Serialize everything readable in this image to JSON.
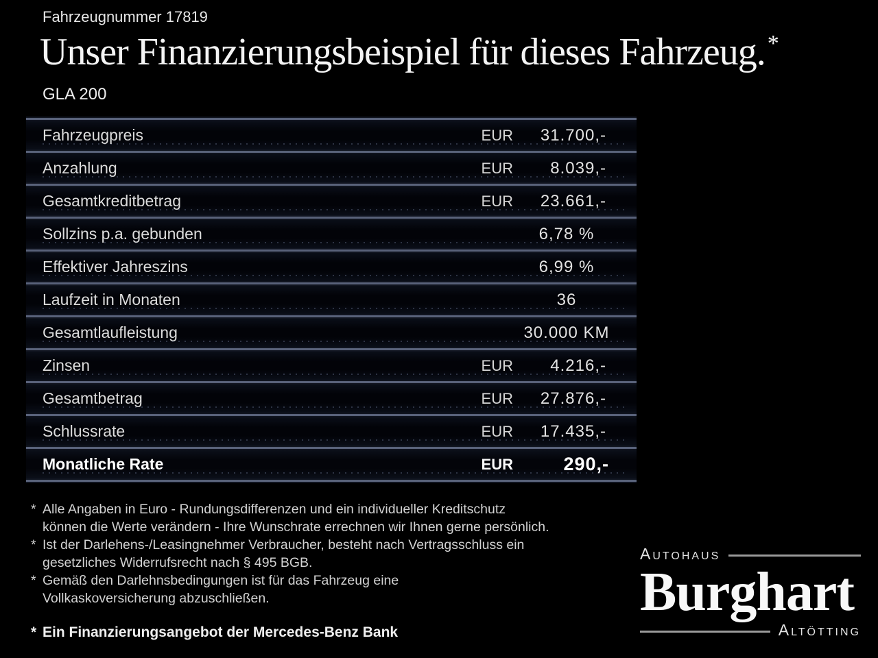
{
  "page": {
    "vehicle_number": "Fahrzeugnummer 17819",
    "title": "Unser Finanzierungsbeispiel für dieses Fahrzeug.",
    "title_asterisk": "*",
    "model": "GLA 200"
  },
  "table": {
    "rows": [
      {
        "label": "Fahrzeugpreis",
        "currency": "EUR",
        "value": "31.700,-"
      },
      {
        "label": "Anzahlung",
        "currency": "EUR",
        "value": "8.039,-"
      },
      {
        "label": "Gesamtkreditbetrag",
        "currency": "EUR",
        "value": "23.661,-"
      },
      {
        "label": "Sollzins p.a. gebunden",
        "currency": "",
        "value": "6,78 %"
      },
      {
        "label": "Effektiver Jahreszins",
        "currency": "",
        "value": "6,99 %"
      },
      {
        "label": "Laufzeit in Monaten",
        "currency": "",
        "value": "36"
      },
      {
        "label": "Gesamtlaufleistung",
        "currency": "",
        "value": "30.000 KM"
      },
      {
        "label": "Zinsen",
        "currency": "EUR",
        "value": "4.216,-"
      },
      {
        "label": "Gesamtbetrag",
        "currency": "EUR",
        "value": "27.876,-"
      },
      {
        "label": "Schlussrate",
        "currency": "EUR",
        "value": "17.435,-"
      },
      {
        "label": "Monatliche Rate",
        "currency": "EUR",
        "value": "290,-"
      }
    ]
  },
  "footnotes": {
    "marker": "*",
    "items": [
      {
        "lines": [
          "Alle Angaben in Euro - Rundungsdifferenzen und ein individueller Kreditschutz",
          "können die Werte verändern - Ihre Wunschrate errechnen wir Ihnen gerne persönlich."
        ]
      },
      {
        "lines": [
          "Ist der Darlehens-/Leasingnehmer Verbraucher, besteht nach Vertragsschluss ein",
          "gesetzliches Widerrufsrecht nach § 495 BGB."
        ]
      },
      {
        "lines": [
          "Gemäß den Darlehnsbedingungen ist für das Fahrzeug eine",
          "Vollkaskoversicherung abzuschließen."
        ]
      }
    ],
    "bold_note": "Ein Finanzierungsangebot der Mercedes-Benz Bank"
  },
  "logo": {
    "top": "Autohaus",
    "name": "Burghart",
    "bottom": "Altötting"
  },
  "colors": {
    "background": "#000000",
    "divider": "#59627a",
    "text": "#dcdcdc",
    "logo_rule": "#9a9a9a"
  }
}
